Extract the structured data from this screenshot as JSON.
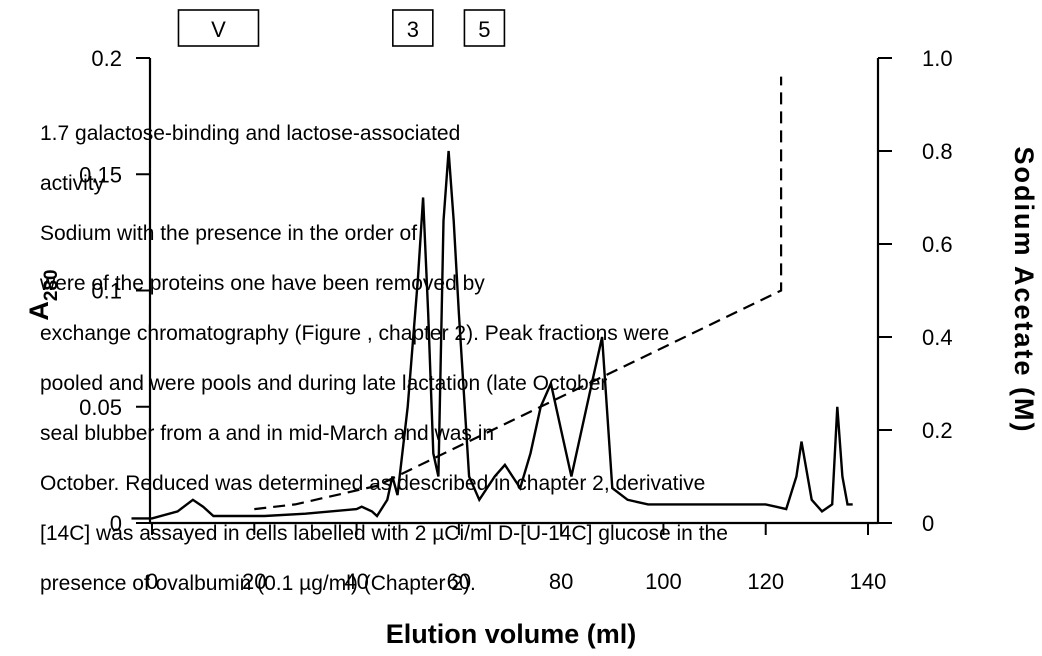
{
  "chart_data": {
    "type": "line",
    "title": "",
    "xlabel": "Elution volume (ml)",
    "ylabel": "A280",
    "ylabel_main": "A",
    "ylabel_sub": "280",
    "y2label": "Sodium Acetate (M)",
    "xlim": [
      0,
      140
    ],
    "ylim": [
      0,
      0.2
    ],
    "y2lim": [
      0,
      1.0
    ],
    "grid": false,
    "x_ticks": [
      0,
      20,
      40,
      60,
      80,
      100,
      120,
      140
    ],
    "x_tick_labels": [
      "0",
      "20",
      "40",
      "60",
      "80",
      "100",
      "120",
      "140"
    ],
    "y_ticks": [
      0,
      0.05,
      0.1,
      0.15,
      0.2
    ],
    "y_tick_labels": [
      "0",
      "0.05",
      "0.1",
      "0.15",
      "0.2"
    ],
    "y2_ticks": [
      0,
      0.2,
      0.4,
      0.6,
      0.8,
      1.0
    ],
    "y2_tick_labels": [
      "0",
      "0.2",
      "0.4",
      "0.6",
      "0.8",
      "1.0"
    ],
    "series": [
      {
        "axis": "left",
        "style": "solid",
        "x": [
          -4,
          0,
          5,
          8,
          10,
          12,
          18,
          22,
          30,
          40,
          41,
          43,
          44,
          46,
          47,
          48,
          50,
          52,
          53,
          54,
          55,
          56,
          57,
          58,
          59,
          60,
          62,
          64,
          67,
          69,
          72,
          74,
          76,
          78,
          80,
          82,
          84,
          86,
          88,
          90,
          93,
          97,
          105,
          110,
          115,
          120,
          122,
          124,
          126,
          127,
          129,
          131,
          133,
          134,
          135,
          136,
          137
        ],
        "y": [
          0.002,
          0.002,
          0.005,
          0.01,
          0.007,
          0.003,
          0.003,
          0.003,
          0.004,
          0.006,
          0.007,
          0.005,
          0.003,
          0.01,
          0.02,
          0.012,
          0.05,
          0.105,
          0.14,
          0.09,
          0.03,
          0.02,
          0.13,
          0.16,
          0.13,
          0.09,
          0.02,
          0.01,
          0.02,
          0.025,
          0.015,
          0.03,
          0.05,
          0.06,
          0.04,
          0.02,
          0.04,
          0.06,
          0.08,
          0.015,
          0.01,
          0.008,
          0.008,
          0.008,
          0.008,
          0.008,
          0.007,
          0.006,
          0.02,
          0.035,
          0.01,
          0.005,
          0.008,
          0.05,
          0.02,
          0.008,
          0.008
        ]
      },
      {
        "axis": "right",
        "style": "dashed",
        "x": [
          20,
          28,
          44,
          123,
          123
        ],
        "y": [
          0.03,
          0.04,
          0.08,
          0.5,
          0.96
        ]
      }
    ]
  },
  "fraction_boxes": [
    {
      "label": "V",
      "x": 13
    },
    {
      "label": "3",
      "x": 51
    },
    {
      "label": "5",
      "x": 65
    }
  ],
  "background_text": [
    "1.7          galactose-binding and lactose-associated",
    "               activity",
    "Sodium         with the               presence        in the       order of",
    "were       of the          proteins              one have been removed by",
    "exchange chromatography (Figure         , chapter 2). Peak fractions were",
    "pooled and were          pools and         during late lactation (late October",
    "seal blubber from a           and          in mid-March and was         in",
    "October. Reduced           was determined as described in chapter 2, derivative",
    "[14C]       was assayed in cells labelled with 2 µCi/ml D-[U-14C] glucose in the",
    "presence of ovalbumin (0.1 µg/ml) (Chapter 2)."
  ]
}
